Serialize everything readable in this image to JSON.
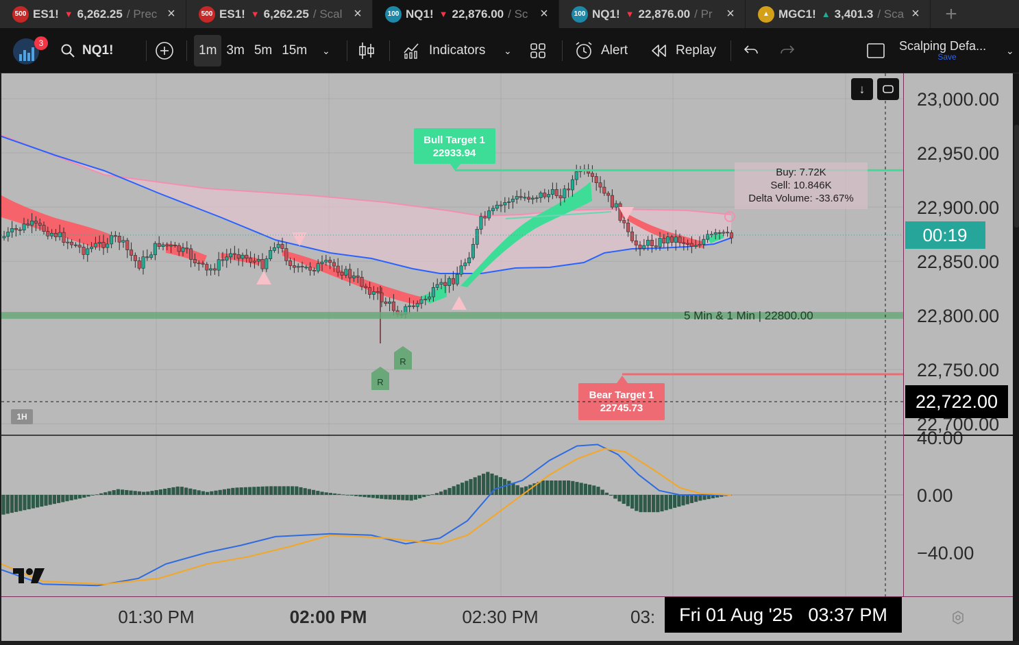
{
  "tabs": [
    {
      "badge": "500",
      "badge_color": "#c62828",
      "symbol": "ES1!",
      "direction": "down",
      "price": "6,262.25",
      "layout": "Prec",
      "active": false
    },
    {
      "badge": "500",
      "badge_color": "#c62828",
      "symbol": "ES1!",
      "direction": "down",
      "price": "6,262.25",
      "layout": "Scal",
      "active": false
    },
    {
      "badge": "100",
      "badge_color": "#1e88a8",
      "symbol": "NQ1!",
      "direction": "down",
      "price": "22,876.00",
      "layout": "Sc",
      "active": true
    },
    {
      "badge": "100",
      "badge_color": "#1e88a8",
      "symbol": "NQ1!",
      "direction": "down",
      "price": "22,876.00",
      "layout": "Pr",
      "active": false
    },
    {
      "badge": "",
      "badge_color": "#d4a017",
      "symbol": "MGC1!",
      "direction": "up",
      "price": "3,401.3",
      "layout": "Sca",
      "active": false
    }
  ],
  "toolbar": {
    "notification_count": "3",
    "symbol": "NQ1!",
    "intervals": [
      "1m",
      "3m",
      "5m",
      "15m"
    ],
    "active_interval": "1m",
    "indicators_label": "Indicators",
    "alert_label": "Alert",
    "replay_label": "Replay",
    "layout_name": "Scalping Defa...",
    "save_label": "Save"
  },
  "chart": {
    "interval_badge": "1H",
    "bull_target": {
      "label": "Bull Target 1",
      "value": "22933.94"
    },
    "bear_target": {
      "label": "Bear Target 1",
      "value": "22745.73"
    },
    "support_label": "5 Min & 1 Min | 22800.00",
    "volume_box": {
      "buy": "Buy: 7.72K",
      "sell": "Sell: 10.846K",
      "delta": "Delta Volume: -33.67%"
    },
    "countdown": "00:19",
    "crosshair_price": "22,722.00",
    "crosshair_time": "Fri 01 Aug '25   03:37 PM",
    "price_ticks": [
      "23,000.00",
      "22,950.00",
      "22,900.00",
      "22,850.00",
      "22,800.00",
      "22,750.00",
      "22,700.00"
    ],
    "osc_ticks": [
      "40.00",
      "0.00",
      "−40.00"
    ],
    "time_ticks": [
      "01:30 PM",
      "02:00 PM",
      "02:30 PM",
      "03:"
    ],
    "signal_marker": "R"
  },
  "colors": {
    "bull": "#22ab94",
    "bear": "#f23645",
    "ema_blue": "#2962ff",
    "ema_pink": "#f48fb1",
    "bull_target": "#3ddc97",
    "bear_target": "#ef6b73",
    "support": "#6aa87a",
    "countdown_bg": "#26a69a"
  }
}
